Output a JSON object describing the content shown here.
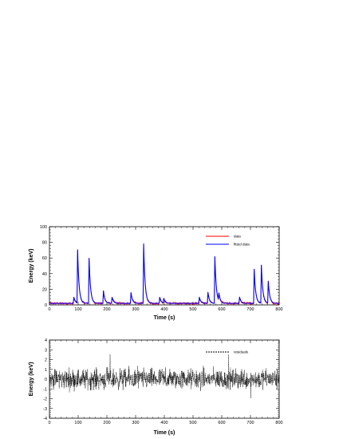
{
  "chart_data": [
    {
      "type": "line",
      "xlabel": "Time (s)",
      "ylabel": "Energy (keV)",
      "xlim": [
        0,
        800
      ],
      "ylim": [
        0,
        100
      ],
      "xticks": [
        "0",
        "100",
        "200",
        "300",
        "400",
        "500",
        "600",
        "700",
        "800"
      ],
      "yticks": [
        "0",
        "20",
        "40",
        "60",
        "80",
        "100"
      ],
      "legend_position": "top-right",
      "baseline": 2,
      "peaks": [
        {
          "t": 85,
          "height": 8
        },
        {
          "t": 98,
          "height": 68
        },
        {
          "t": 138,
          "height": 58
        },
        {
          "t": 188,
          "height": 16
        },
        {
          "t": 218,
          "height": 8
        },
        {
          "t": 284,
          "height": 14
        },
        {
          "t": 328,
          "height": 76
        },
        {
          "t": 384,
          "height": 8
        },
        {
          "t": 398,
          "height": 6
        },
        {
          "t": 522,
          "height": 8
        },
        {
          "t": 552,
          "height": 14
        },
        {
          "t": 576,
          "height": 60
        },
        {
          "t": 590,
          "height": 10
        },
        {
          "t": 662,
          "height": 8
        },
        {
          "t": 713,
          "height": 44
        },
        {
          "t": 738,
          "height": 49
        },
        {
          "t": 762,
          "height": 28
        }
      ],
      "series": [
        {
          "name": "data",
          "color": "#ff0000"
        },
        {
          "name": "fitted data",
          "color": "#0000ff"
        }
      ]
    },
    {
      "type": "line",
      "xlabel": "Time (s)",
      "ylabel": "Energy (keV)",
      "xlim": [
        0,
        800
      ],
      "ylim": [
        -4,
        4
      ],
      "xticks": [
        "0",
        "100",
        "200",
        "300",
        "400",
        "500",
        "600",
        "700",
        "800"
      ],
      "yticks": [
        "-4",
        "-3",
        "-2",
        "-1",
        "0",
        "1",
        "2",
        "3",
        "4"
      ],
      "legend_position": "top-right",
      "noise_amplitude": 0.8,
      "series": [
        {
          "name": "residuals",
          "color": "#000000",
          "style": "dashed"
        }
      ]
    }
  ]
}
